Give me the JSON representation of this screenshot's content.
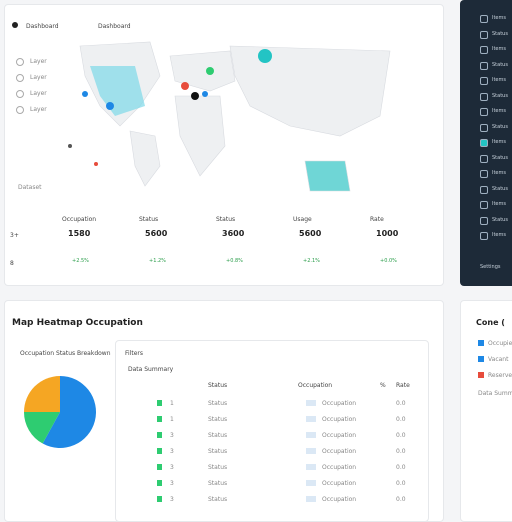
{
  "header": {
    "tabs": [
      "Dashboard",
      "Dashboard"
    ]
  },
  "map": {
    "layers": [
      "Layer",
      "Layer",
      "Layer",
      "Layer"
    ],
    "caption": "Dataset"
  },
  "stats": [
    {
      "label": "Occupation",
      "value": "1580",
      "delta": "+2.5%"
    },
    {
      "label": "Status",
      "value": "5600",
      "delta": "+1.2%"
    },
    {
      "label": "Status",
      "value": "3600",
      "delta": "+0.8%"
    },
    {
      "label": "Usage",
      "value": "5600",
      "delta": "+2.1%"
    },
    {
      "label": "Rate",
      "value": "1000",
      "delta": "+0.0%"
    }
  ],
  "row_labels": [
    "3+",
    "8"
  ],
  "sidebar": {
    "items": [
      "Items",
      "Status",
      "Items",
      "Status",
      "Items",
      "Status",
      "Items",
      "Status",
      "Items",
      "Status",
      "Items",
      "Status",
      "Items",
      "Status",
      "Items"
    ],
    "footer": "Settings"
  },
  "section": {
    "title": "Map Heatmap Occupation",
    "pie_title": "Occupation Status Breakdown",
    "pie": {
      "type": "pie",
      "values": [
        58,
        17,
        25
      ],
      "colors": [
        "#1e88e5",
        "#2ecc71",
        "#f5a623"
      ]
    },
    "table": {
      "title": "Filters",
      "subtitle": "Data Summary",
      "headers": [
        "Status",
        "Occupation",
        "%",
        "Rate"
      ],
      "rows": [
        [
          "1",
          "Status",
          "Occupation",
          "0.0"
        ],
        [
          "1",
          "Status",
          "Occupation",
          "0.0"
        ],
        [
          "3",
          "Status",
          "Occupation",
          "0.0"
        ],
        [
          "3",
          "Status",
          "Occupation",
          "0.0"
        ],
        [
          "3",
          "Status",
          "Occupation",
          "0.0"
        ],
        [
          "3",
          "Status",
          "Occupation",
          "0.0"
        ],
        [
          "3",
          "Status",
          "Occupation",
          "0.0"
        ]
      ]
    }
  },
  "side_card": {
    "title": "Cone (",
    "items": [
      "Occupied",
      "Vacant",
      "Reserved"
    ],
    "note": "Data Summary"
  }
}
